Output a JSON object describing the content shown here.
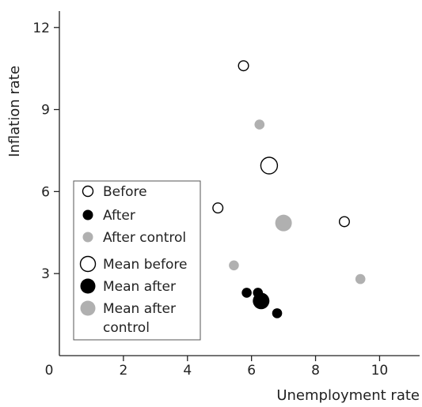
{
  "chart_data": {
    "type": "scatter",
    "title": "",
    "xlabel": "Unemployment rate",
    "ylabel": "Inflation rate",
    "xlim": [
      0,
      11.25
    ],
    "ylim": [
      0,
      12.6
    ],
    "x_ticks": [
      0,
      2,
      4,
      6,
      8,
      10
    ],
    "y_ticks": [
      3,
      6,
      9,
      12
    ],
    "x_tick_labels": [
      "0",
      "2",
      "4",
      "6",
      "8",
      "10"
    ],
    "y_tick_labels": [
      "3",
      "6",
      "9",
      "12"
    ],
    "grid": false,
    "legend_position": "left",
    "series": [
      {
        "name": "Before",
        "marker": "open-small",
        "color": "#000000",
        "points": [
          {
            "x": 5.75,
            "y": 10.6
          },
          {
            "x": 4.95,
            "y": 5.4
          },
          {
            "x": 8.9,
            "y": 4.9
          }
        ]
      },
      {
        "name": "After",
        "marker": "filled-small",
        "color": "#000000",
        "points": [
          {
            "x": 5.85,
            "y": 2.3
          },
          {
            "x": 6.2,
            "y": 2.3
          },
          {
            "x": 6.8,
            "y": 1.55
          }
        ]
      },
      {
        "name": "After control",
        "marker": "filled-small",
        "color": "#b0b0b0",
        "points": [
          {
            "x": 6.25,
            "y": 8.45
          },
          {
            "x": 5.45,
            "y": 3.3
          },
          {
            "x": 9.4,
            "y": 2.8
          }
        ]
      },
      {
        "name": "Mean before",
        "marker": "open-large",
        "color": "#000000",
        "points": [
          {
            "x": 6.55,
            "y": 6.95
          }
        ]
      },
      {
        "name": "Mean after",
        "marker": "filled-large",
        "color": "#000000",
        "points": [
          {
            "x": 6.3,
            "y": 2.0
          }
        ]
      },
      {
        "name": "Mean after control",
        "marker": "filled-large",
        "color": "#b0b0b0",
        "points": [
          {
            "x": 7.0,
            "y": 4.85
          }
        ]
      }
    ],
    "legend": [
      {
        "label_lines": [
          "Before"
        ],
        "marker": "open-small",
        "color": "#000000"
      },
      {
        "label_lines": [
          "After"
        ],
        "marker": "filled-small",
        "color": "#000000"
      },
      {
        "label_lines": [
          "After control"
        ],
        "marker": "filled-small",
        "color": "#b0b0b0"
      },
      {
        "label_lines": [
          "Mean before"
        ],
        "marker": "open-large",
        "color": "#000000"
      },
      {
        "label_lines": [
          "Mean after"
        ],
        "marker": "filled-large",
        "color": "#000000"
      },
      {
        "label_lines": [
          "Mean after",
          "control"
        ],
        "marker": "filled-large",
        "color": "#b0b0b0"
      }
    ]
  }
}
